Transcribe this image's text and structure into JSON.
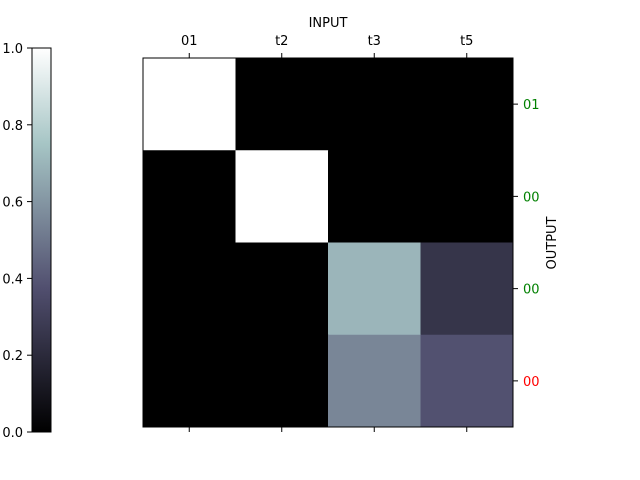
{
  "chart_data": [
    {
      "type": "heatmap",
      "x_axis": {
        "label": "INPUT",
        "position": "top",
        "categories": [
          "01",
          "t2",
          "t3",
          "t5"
        ]
      },
      "y_axis": {
        "label": "OUTPUT",
        "position": "right",
        "categories": [
          "01",
          "00",
          "00",
          "00"
        ],
        "category_colors": [
          "#008000",
          "#008000",
          "#008000",
          "#ff0000"
        ]
      },
      "values": [
        [
          1.0,
          0.0,
          0.0,
          0.0
        ],
        [
          0.0,
          1.0,
          0.0,
          0.0
        ],
        [
          0.0,
          0.0,
          0.7,
          0.25
        ],
        [
          0.0,
          0.0,
          0.55,
          0.38
        ]
      ],
      "colormap": "bone",
      "vmin": 0,
      "vmax": 1,
      "grid": false
    },
    {
      "type": "colorbar",
      "position": "left",
      "range": [
        0,
        1
      ],
      "ticks": [
        "0.0",
        "0.2",
        "0.4",
        "0.6",
        "0.8",
        "1.0"
      ],
      "colormap": "bone"
    }
  ]
}
